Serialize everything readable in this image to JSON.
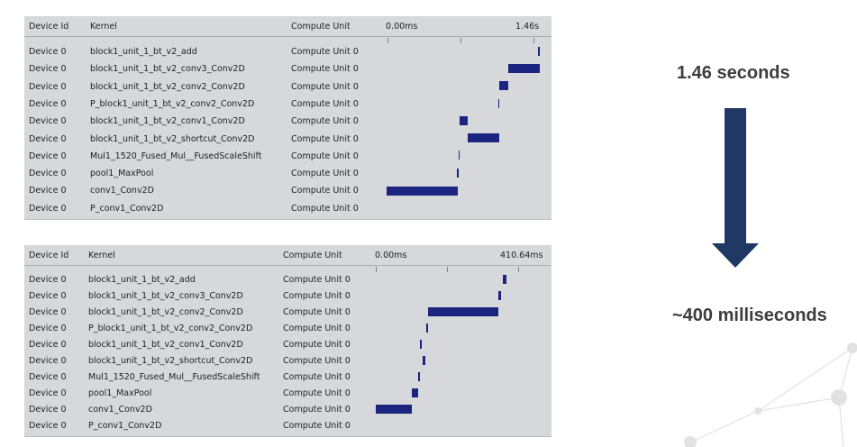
{
  "columns": {
    "device": "Device Id",
    "kernel": "Kernel",
    "unit": "Compute Unit"
  },
  "top_panel": {
    "time_start": "0.00ms",
    "time_end": "1.46s",
    "rows": [
      {
        "device": "Device 0",
        "kernel": "block1_unit_1_bt_v2_add",
        "unit": "Compute Unit 0"
      },
      {
        "device": "Device 0",
        "kernel": "block1_unit_1_bt_v2_conv3_Conv2D",
        "unit": "Compute Unit 0"
      },
      {
        "device": "Device 0",
        "kernel": "block1_unit_1_bt_v2_conv2_Conv2D",
        "unit": "Compute Unit 0"
      },
      {
        "device": "Device 0",
        "kernel": "P_block1_unit_1_bt_v2_conv2_Conv2D",
        "unit": "Compute Unit 0"
      },
      {
        "device": "Device 0",
        "kernel": "block1_unit_1_bt_v2_conv1_Conv2D",
        "unit": "Compute Unit 0"
      },
      {
        "device": "Device 0",
        "kernel": "block1_unit_1_bt_v2_shortcut_Conv2D",
        "unit": "Compute Unit 0"
      },
      {
        "device": "Device 0",
        "kernel": "Mul1_1520_Fused_Mul__FusedScaleShift",
        "unit": "Compute Unit 0"
      },
      {
        "device": "Device 0",
        "kernel": "pool1_MaxPool",
        "unit": "Compute Unit 0"
      },
      {
        "device": "Device 0",
        "kernel": "conv1_Conv2D",
        "unit": "Compute Unit 0"
      },
      {
        "device": "Device 0",
        "kernel": "P_conv1_Conv2D",
        "unit": "Compute Unit 0"
      }
    ]
  },
  "bottom_panel": {
    "time_start": "0.00ms",
    "time_end": "410.64ms",
    "rows": [
      {
        "device": "Device 0",
        "kernel": "block1_unit_1_bt_v2_add",
        "unit": "Compute Unit 0"
      },
      {
        "device": "Device 0",
        "kernel": "block1_unit_1_bt_v2_conv3_Conv2D",
        "unit": "Compute Unit 0"
      },
      {
        "device": "Device 0",
        "kernel": "block1_unit_1_bt_v2_conv2_Conv2D",
        "unit": "Compute Unit 0"
      },
      {
        "device": "Device 0",
        "kernel": "P_block1_unit_1_bt_v2_conv2_Conv2D",
        "unit": "Compute Unit 0"
      },
      {
        "device": "Device 0",
        "kernel": "block1_unit_1_bt_v2_conv1_Conv2D",
        "unit": "Compute Unit 0"
      },
      {
        "device": "Device 0",
        "kernel": "block1_unit_1_bt_v2_shortcut_Conv2D",
        "unit": "Compute Unit 0"
      },
      {
        "device": "Device 0",
        "kernel": "Mul1_1520_Fused_Mul__FusedScaleShift",
        "unit": "Compute Unit 0"
      },
      {
        "device": "Device 0",
        "kernel": "pool1_MaxPool",
        "unit": "Compute Unit 0"
      },
      {
        "device": "Device 0",
        "kernel": "conv1_Conv2D",
        "unit": "Compute Unit 0"
      },
      {
        "device": "Device 0",
        "kernel": "P_conv1_Conv2D",
        "unit": "Compute Unit 0"
      }
    ]
  },
  "caption_before": "1.46 seconds",
  "caption_after": "~400 milliseconds",
  "colors": {
    "panel_bg": "#d6d8dc",
    "bar": "#1b247f",
    "arrow": "#1f3864",
    "caption": "#3d3d3d"
  }
}
